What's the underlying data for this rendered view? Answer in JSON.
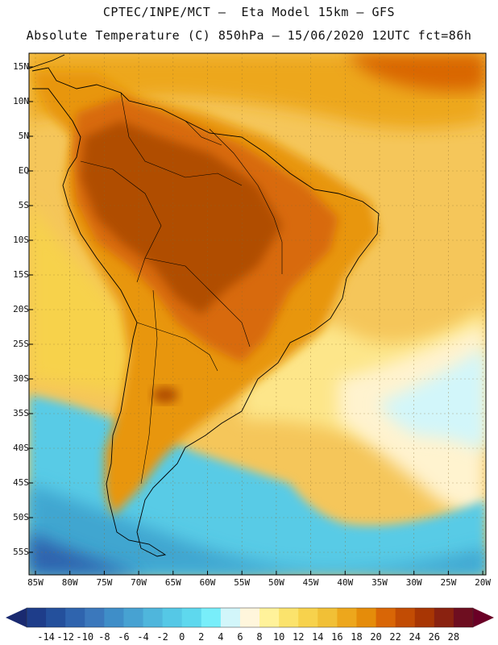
{
  "title_line1": "CPTEC/INPE/MCT –  Eta Model 15km – GFS",
  "title_line2": "Absolute Temperature (C) 850hPa – 15/06/2020 12UTC fct=86h",
  "lat_labels": [
    "15N",
    "10N",
    "5N",
    "EQ",
    "5S",
    "10S",
    "15S",
    "20S",
    "25S",
    "30S",
    "35S",
    "40S",
    "45S",
    "50S",
    "55S"
  ],
  "lon_labels": [
    "85W",
    "80W",
    "75W",
    "70W",
    "65W",
    "60W",
    "55W",
    "50W",
    "45W",
    "40W",
    "35W",
    "30W",
    "25W",
    "20W"
  ],
  "colorbar": {
    "levels": [
      "-14",
      "-12",
      "-10",
      "-8",
      "-6",
      "-4",
      "-2",
      "0",
      "2",
      "4",
      "6",
      "8",
      "10",
      "12",
      "14",
      "16",
      "18",
      "20",
      "22",
      "24",
      "26",
      "28"
    ],
    "colors": [
      "#1e3d8a",
      "#24509c",
      "#2f64ae",
      "#3b78bc",
      "#3f8ec8",
      "#47a2d2",
      "#4fb6dc",
      "#55c8e6",
      "#5ed8ee",
      "#78eefa",
      "#d2f6fa",
      "#fff6dc",
      "#fff29a",
      "#fbe36c",
      "#f7d24c",
      "#f1c036",
      "#eda71c",
      "#e58c0a",
      "#d96606",
      "#c24c04",
      "#a83604",
      "#8a2210",
      "#6e0e20"
    ],
    "low_arrow": "#1a2a70",
    "high_arrow": "#6a0026"
  },
  "map_colors": {
    "ocean_mid": "#f5c65a",
    "ocean_warm": "#eda71c",
    "ocean_south_yellow": "#fde68a",
    "ocean_pale": "#fff3cf",
    "ocean_cold": "#58cbe6",
    "ocean_colder": "#3fa6d0",
    "land_hot": "#b04e06",
    "land_warm": "#d86a08",
    "land_mid": "#e8960e",
    "border": "#000000"
  }
}
